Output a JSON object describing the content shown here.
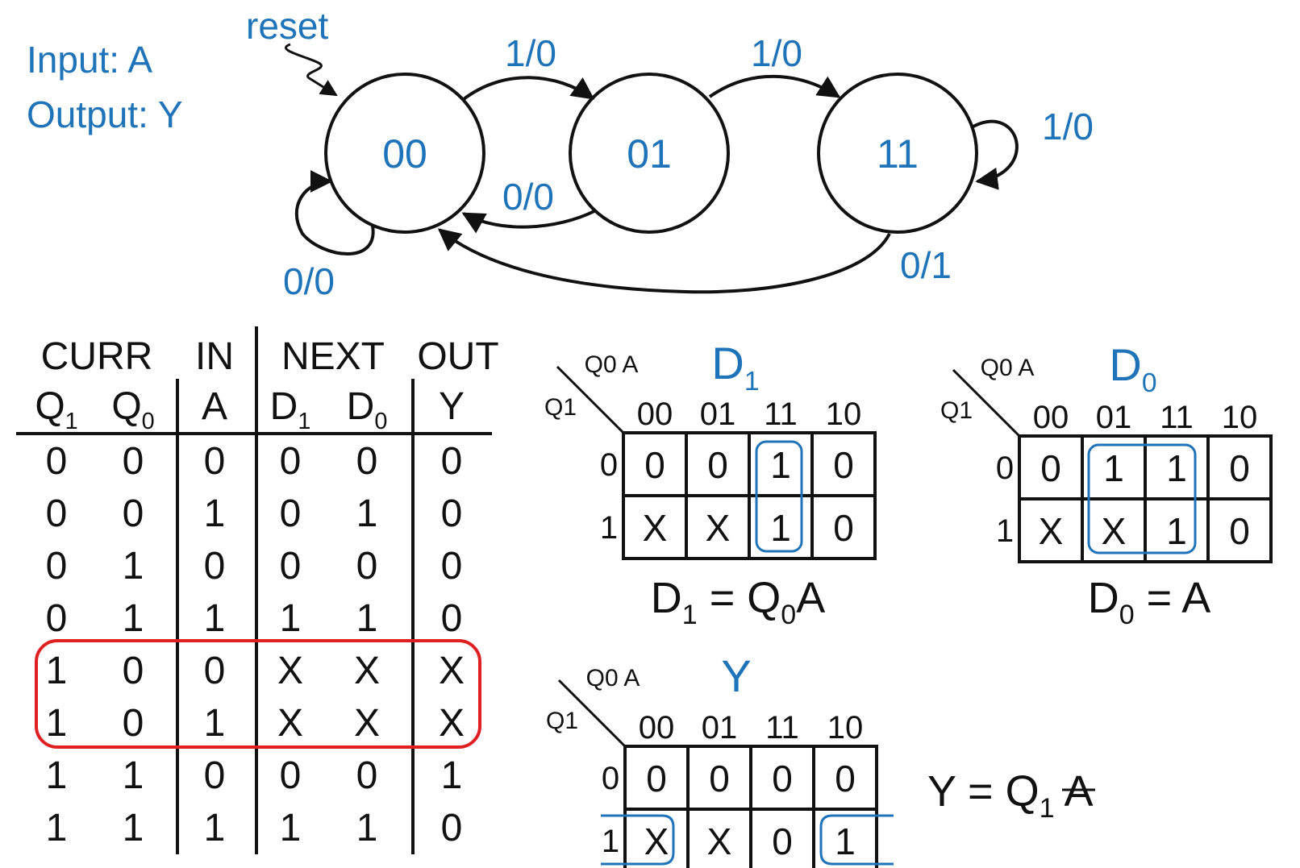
{
  "io": {
    "input_label": "Input: A",
    "output_label": "Output: Y"
  },
  "fsm": {
    "reset_label": "reset",
    "states": [
      "00",
      "01",
      "11"
    ],
    "transitions": {
      "s00_to_01": "1/0",
      "s01_to_11": "1/0",
      "s11_self": "1/0",
      "s01_to_00": "0/0",
      "s00_self": "0/0",
      "s11_to_00": "0/1"
    }
  },
  "truth_table": {
    "group_headers": [
      "CURR",
      "IN",
      "NEXT",
      "OUT"
    ],
    "col_headers": [
      {
        "base": "Q",
        "sub": "1"
      },
      {
        "base": "Q",
        "sub": "0"
      },
      {
        "base": "A",
        "sub": ""
      },
      {
        "base": "D",
        "sub": "1"
      },
      {
        "base": "D",
        "sub": "0"
      },
      {
        "base": "Y",
        "sub": ""
      }
    ],
    "rows": [
      [
        "0",
        "0",
        "0",
        "0",
        "0",
        "0"
      ],
      [
        "0",
        "0",
        "1",
        "0",
        "1",
        "0"
      ],
      [
        "0",
        "1",
        "0",
        "0",
        "0",
        "0"
      ],
      [
        "0",
        "1",
        "1",
        "1",
        "1",
        "0"
      ],
      [
        "1",
        "0",
        "0",
        "X",
        "X",
        "X"
      ],
      [
        "1",
        "0",
        "1",
        "X",
        "X",
        "X"
      ],
      [
        "1",
        "1",
        "0",
        "0",
        "0",
        "1"
      ],
      [
        "1",
        "1",
        "1",
        "1",
        "1",
        "0"
      ]
    ],
    "highlighted_rows": [
      4,
      5
    ],
    "highlight_color": "#e02020"
  },
  "kmaps": [
    {
      "id": "d1",
      "title": {
        "base": "D",
        "sub": "1"
      },
      "col_var": "Q0 A",
      "row_var": "Q1",
      "col_labels": [
        "00",
        "01",
        "11",
        "10"
      ],
      "row_labels": [
        "0",
        "1"
      ],
      "cells": [
        [
          "0",
          "0",
          "1",
          "0"
        ],
        [
          "X",
          "X",
          "1",
          "0"
        ]
      ],
      "equation": {
        "lhs": "D",
        "lhs_sub": "1",
        "eq": "=",
        "rhs": "Q",
        "rhs_sub": "0",
        "rhs_tail": "A"
      }
    },
    {
      "id": "d0",
      "title": {
        "base": "D",
        "sub": "0"
      },
      "col_var": "Q0 A",
      "row_var": "Q1",
      "col_labels": [
        "00",
        "01",
        "11",
        "10"
      ],
      "row_labels": [
        "0",
        "1"
      ],
      "cells": [
        [
          "0",
          "1",
          "1",
          "0"
        ],
        [
          "X",
          "X",
          "1",
          "0"
        ]
      ],
      "equation": {
        "lhs": "D",
        "lhs_sub": "0",
        "eq": "=",
        "rhs": "A"
      }
    },
    {
      "id": "y",
      "title": {
        "base": "Y",
        "sub": ""
      },
      "col_var": "Q0 A",
      "row_var": "Q1",
      "col_labels": [
        "00",
        "01",
        "11",
        "10"
      ],
      "row_labels": [
        "0",
        "1"
      ],
      "cells": [
        [
          "0",
          "0",
          "0",
          "0"
        ],
        [
          "X",
          "X",
          "0",
          "1"
        ]
      ],
      "equation": {
        "lhs": "Y",
        "eq": "=",
        "rhs": "Q",
        "rhs_sub": "1",
        "rhs_tail": "A",
        "rhs_tail_overbar": true
      }
    }
  ],
  "colors": {
    "accent_blue": "#1f73b9",
    "ink": "#111111",
    "highlight_red": "#e02020"
  }
}
